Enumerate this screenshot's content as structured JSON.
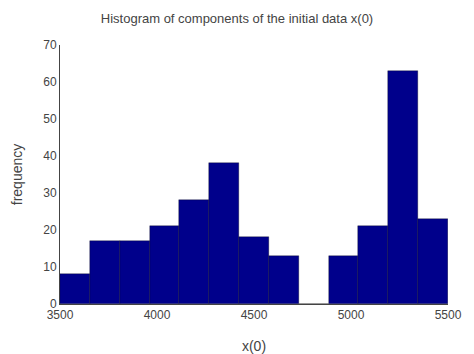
{
  "chart_data": {
    "type": "histogram",
    "title": "Histogram of components of the initial data x(0)",
    "xlabel": "x(0)",
    "ylabel": "frequency",
    "bins": [
      3500,
      3653.846153846154,
      3807.6923076923076,
      3961.5384615384614,
      4115.384615384615,
      4269.230769230769,
      4423.076923076923,
      4576.923076923077,
      4730.7692307692305,
      4884.615384615385,
      5038.461538461538,
      5192.307692307692,
      5346.153846153846,
      5500
    ],
    "values": [
      8,
      17,
      17,
      21,
      28,
      38,
      18,
      13,
      0,
      13,
      21,
      63,
      23
    ],
    "color": "#00008B",
    "xlim": [
      3500,
      5500
    ],
    "ylim": [
      0,
      70
    ],
    "xticks": [
      3500,
      4000,
      4500,
      5000,
      5500
    ],
    "yticks": [
      0,
      10,
      20,
      30,
      40,
      50,
      60,
      70
    ],
    "grid": false
  }
}
